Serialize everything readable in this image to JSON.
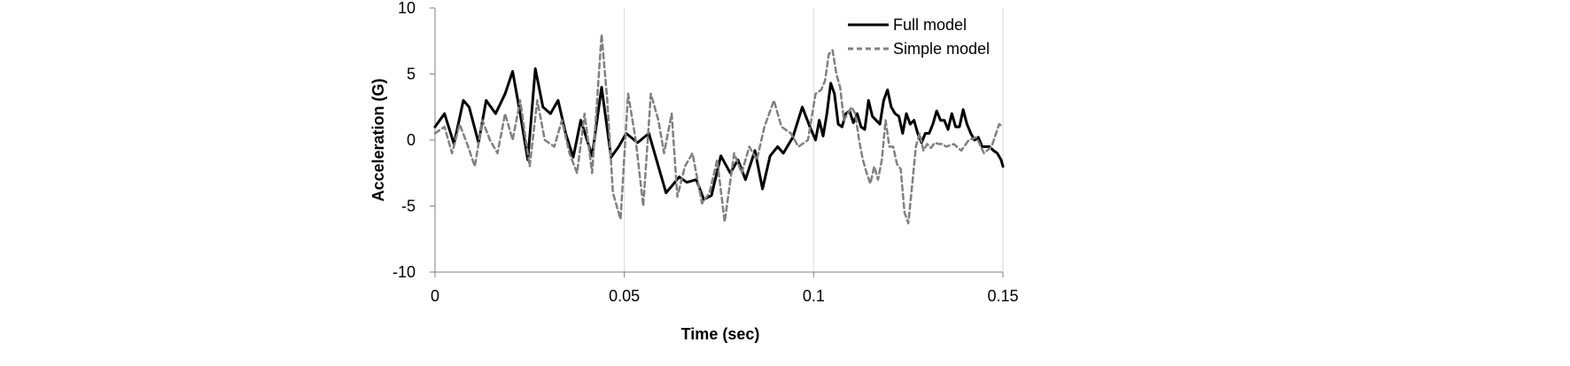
{
  "chart_data": {
    "type": "line",
    "title": "",
    "xlabel": "Time (sec)",
    "ylabel": "Acceleration (G)",
    "xlim": [
      0,
      0.15
    ],
    "ylim": [
      -10,
      10
    ],
    "x_ticks": [
      0,
      0.05,
      0.1,
      0.15
    ],
    "x_tick_labels": [
      "0",
      "0.05",
      "0.1",
      "0.15"
    ],
    "y_ticks": [
      -10,
      -5,
      0,
      5,
      10
    ],
    "y_tick_labels": [
      "-10",
      "-5",
      "0",
      "5",
      "10"
    ],
    "grid": "vertical",
    "legend_position": "top-right",
    "series": [
      {
        "name": "Full model",
        "color": "#000000",
        "style": "solid",
        "x": [
          0,
          0.0025,
          0.005,
          0.0075,
          0.009,
          0.0115,
          0.0135,
          0.016,
          0.0185,
          0.0205,
          0.0225,
          0.0245,
          0.0265,
          0.0285,
          0.0305,
          0.0325,
          0.0345,
          0.0365,
          0.0385,
          0.0415,
          0.044,
          0.0465,
          0.0485,
          0.0505,
          0.0535,
          0.0565,
          0.0585,
          0.061,
          0.0625,
          0.0645,
          0.0665,
          0.069,
          0.071,
          0.073,
          0.0755,
          0.078,
          0.08,
          0.082,
          0.0845,
          0.0865,
          0.0885,
          0.0905,
          0.092,
          0.0945,
          0.097,
          0.099,
          0.1005,
          0.1015,
          0.1025,
          0.1035,
          0.1045,
          0.1055,
          0.1065,
          0.1075,
          0.1085,
          0.1095,
          0.1105,
          0.1115,
          0.1125,
          0.1135,
          0.1145,
          0.1155,
          0.1165,
          0.1175,
          0.1185,
          0.1195,
          0.1205,
          0.1215,
          0.1225,
          0.1235,
          0.1245,
          0.1255,
          0.1265,
          0.1275,
          0.1285,
          0.1295,
          0.1305,
          0.1315,
          0.1325,
          0.1335,
          0.1345,
          0.1355,
          0.1365,
          0.1375,
          0.1385,
          0.1395,
          0.1405,
          0.1415,
          0.1425,
          0.1435,
          0.1445,
          0.1455,
          0.1465,
          0.1475,
          0.1485,
          0.1495,
          0.15
        ],
        "y": [
          1,
          2,
          -0.3,
          3,
          2.5,
          -0.2,
          3,
          2,
          3.5,
          5.2,
          2,
          -1.5,
          5.4,
          2.5,
          2,
          3,
          0.5,
          -1.3,
          1.5,
          -1.2,
          4,
          -1.3,
          -0.5,
          0.5,
          -0.2,
          0.5,
          -1.5,
          -4,
          -3.5,
          -2.8,
          -3.2,
          -3,
          -4.5,
          -4.2,
          -1.2,
          -2.5,
          -1.5,
          -3,
          -0.8,
          -3.7,
          -1.2,
          -0.5,
          -1,
          0.2,
          2.5,
          1,
          0,
          1.5,
          0.3,
          2,
          4.3,
          3.5,
          1.2,
          1,
          2,
          2.2,
          1.3,
          2,
          1,
          0.8,
          3,
          1.8,
          1.5,
          1.2,
          3,
          3.8,
          2.5,
          2,
          1.8,
          0.5,
          2,
          1.2,
          1.5,
          0.5,
          -0.2,
          0.5,
          0.5,
          1.2,
          2.2,
          1.5,
          1.5,
          0.8,
          2,
          1,
          1,
          2.3,
          1.2,
          0.5,
          0,
          0.2,
          -0.5,
          -0.5,
          -0.5,
          -0.8,
          -1,
          -1.5,
          -2
        ]
      },
      {
        "name": "Simple model",
        "color": "#808080",
        "style": "dashed",
        "x": [
          0,
          0.0025,
          0.0045,
          0.0065,
          0.0085,
          0.0105,
          0.0125,
          0.0145,
          0.0165,
          0.0185,
          0.0205,
          0.0225,
          0.025,
          0.027,
          0.029,
          0.0315,
          0.0335,
          0.0355,
          0.0375,
          0.0395,
          0.0415,
          0.044,
          0.0455,
          0.047,
          0.049,
          0.051,
          0.053,
          0.055,
          0.057,
          0.059,
          0.0605,
          0.0625,
          0.064,
          0.066,
          0.068,
          0.0705,
          0.0725,
          0.0745,
          0.0765,
          0.079,
          0.081,
          0.083,
          0.085,
          0.087,
          0.0895,
          0.0915,
          0.094,
          0.096,
          0.0985,
          0.1005,
          0.102,
          0.103,
          0.104,
          0.105,
          0.106,
          0.107,
          0.108,
          0.109,
          0.11,
          0.111,
          0.112,
          0.113,
          0.114,
          0.115,
          0.116,
          0.117,
          0.118,
          0.119,
          0.12,
          0.121,
          0.122,
          0.123,
          0.124,
          0.125,
          0.126,
          0.127,
          0.128,
          0.129,
          0.13,
          0.131,
          0.132,
          0.133,
          0.134,
          0.135,
          0.137,
          0.139,
          0.141,
          0.143,
          0.145,
          0.147,
          0.149,
          0.15
        ],
        "y": [
          0.5,
          1,
          -1,
          1.2,
          -0.3,
          -2,
          1.5,
          0,
          -1,
          2,
          0,
          3,
          -2,
          3,
          0,
          -0.5,
          1.5,
          -1,
          -2.5,
          2,
          -2.5,
          8,
          3,
          -4,
          -6,
          3.5,
          0,
          -5,
          3.5,
          1.5,
          -1,
          2,
          -4.3,
          -2,
          -1,
          -4.8,
          -4,
          -1.5,
          -6.2,
          -1,
          -2.5,
          -0.5,
          -1.5,
          1,
          3,
          1,
          0.5,
          -0.5,
          0,
          3.5,
          3.8,
          4.5,
          6.5,
          6.8,
          5,
          4,
          1.5,
          2,
          2.5,
          2,
          0,
          -1.5,
          -2.5,
          -3.3,
          -2,
          -3,
          -1.5,
          1.5,
          -0.5,
          -0.5,
          -1.8,
          -2.2,
          -5.5,
          -6.3,
          -3.5,
          -0.5,
          0.5,
          -0.8,
          -0.3,
          -0.6,
          -0.2,
          -0.3,
          -0.3,
          -0.5,
          -0.3,
          -0.8,
          0,
          0.2,
          -1,
          -0.5,
          1.2,
          1
        ]
      }
    ]
  }
}
